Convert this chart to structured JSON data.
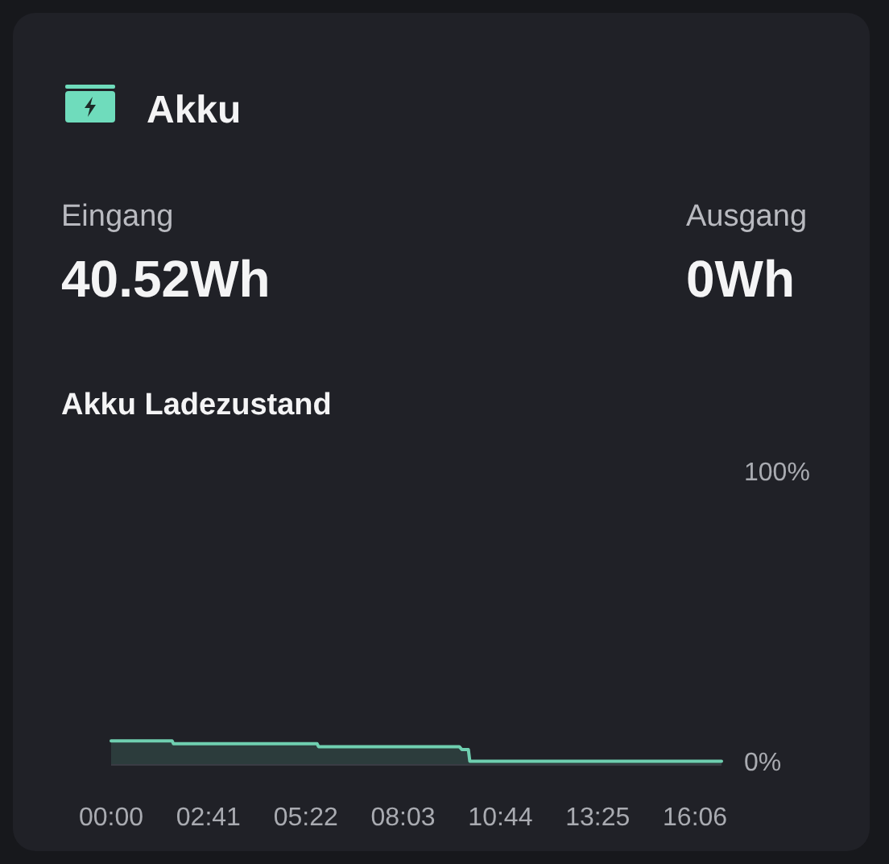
{
  "chart_data": {
    "type": "area",
    "title": "Akku",
    "subtitle": "Akku Ladezustand",
    "annotations": [
      "Eingang",
      "40.52Wh",
      "Ausgang",
      "0Wh"
    ],
    "x": [
      0,
      1.68,
      1.72,
      5.68,
      5.72,
      9.6,
      9.67,
      9.85,
      9.89,
      16.83
    ],
    "series": [
      {
        "color": "#6fcfb0",
        "values": [
          8,
          8,
          7,
          7,
          6,
          6,
          5,
          5,
          1,
          1
        ]
      }
    ],
    "xlim": [
      0,
      16.83
    ],
    "xticks": [
      {
        "value": 0,
        "label": "00:00"
      },
      {
        "value": 2.6833,
        "label": "02:41"
      },
      {
        "value": 5.3667,
        "label": "05:22"
      },
      {
        "value": 8.05,
        "label": "08:03"
      },
      {
        "value": 10.7333,
        "label": "10:44"
      },
      {
        "value": 13.4167,
        "label": "13:25"
      },
      {
        "value": 16.1,
        "label": "16:06"
      }
    ],
    "ylim": [
      0,
      100
    ],
    "yticks": [
      {
        "value": 0,
        "label": "0%"
      },
      {
        "value": 100,
        "label": "100%"
      }
    ]
  }
}
